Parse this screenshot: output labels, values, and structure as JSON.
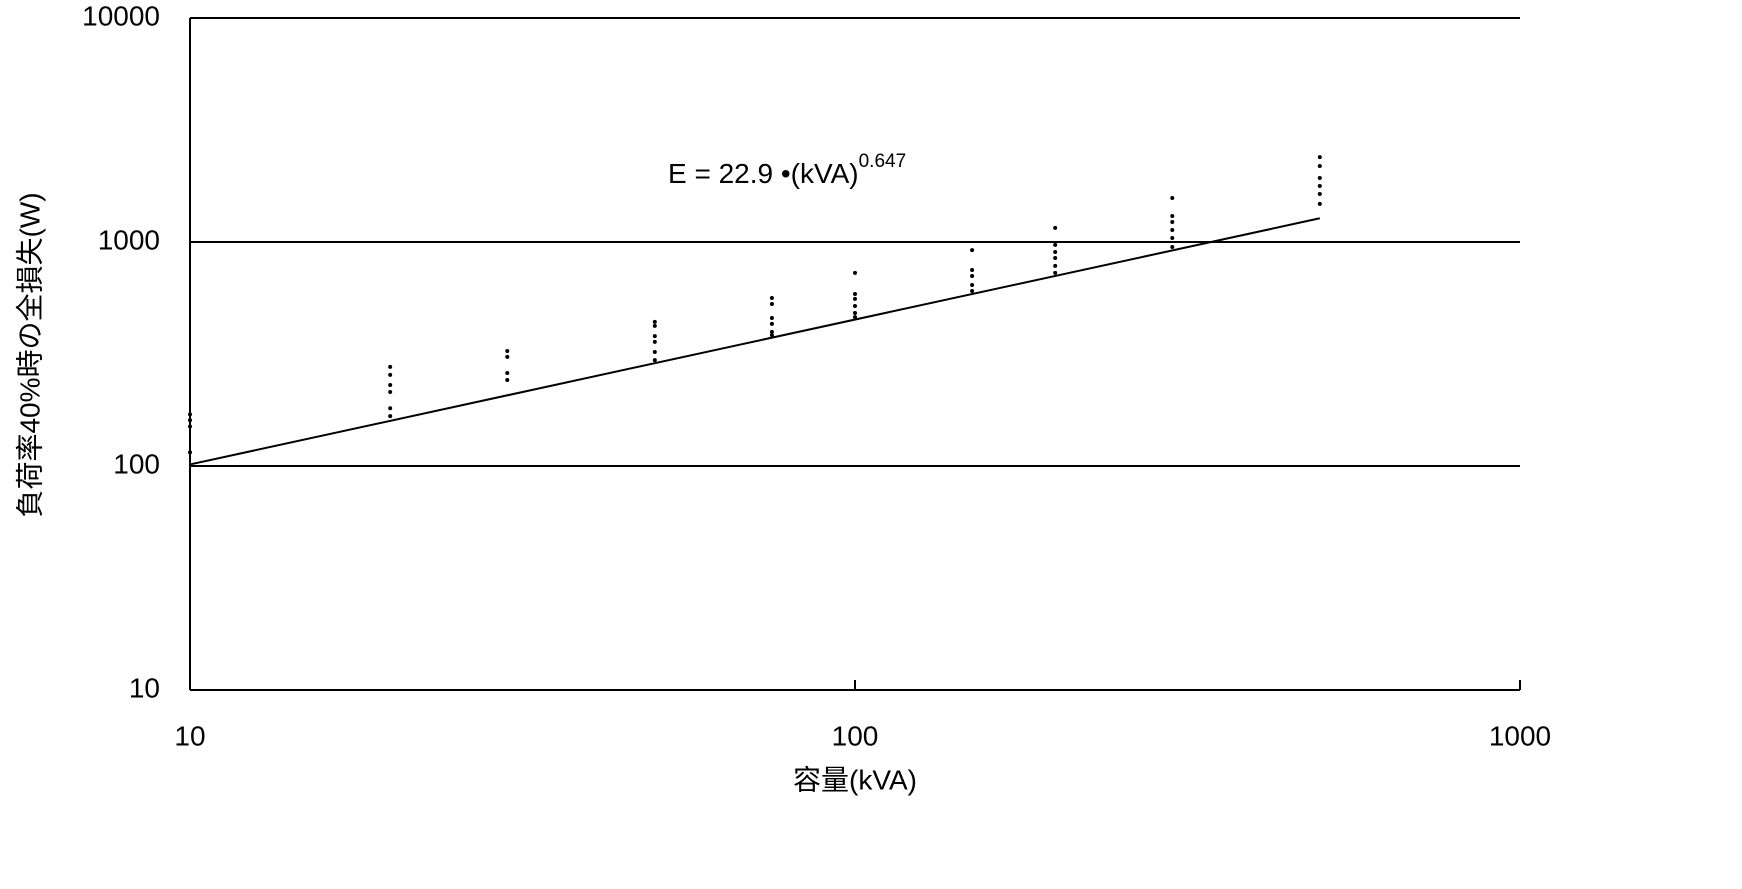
{
  "chart_data": {
    "type": "scatter",
    "xscale": "log",
    "yscale": "log",
    "xlabel": "容量(kVA)",
    "ylabel": "負荷率40%時の全損失(W)",
    "xlim": [
      10,
      1000
    ],
    "ylim": [
      10,
      10000
    ],
    "xticks": [
      10,
      100,
      1000
    ],
    "yticks": [
      10,
      100,
      1000,
      10000
    ],
    "grid": "y",
    "annotation": {
      "text": "E = 22.9 •(kVA)",
      "superscript": "0.647"
    },
    "series": [
      {
        "mode": "markers",
        "color": "#000000",
        "x": [
          10,
          10,
          10,
          10,
          20,
          20,
          20,
          20,
          20,
          20,
          30,
          30,
          30,
          30,
          50,
          50,
          50,
          50,
          50,
          50,
          75,
          75,
          75,
          75,
          75,
          75,
          100,
          100,
          100,
          100,
          100,
          100,
          150,
          150,
          150,
          150,
          150,
          200,
          200,
          200,
          200,
          200,
          200,
          300,
          300,
          300,
          300,
          300,
          300,
          500,
          500,
          500,
          500,
          500,
          500
        ],
        "values": [
          170,
          160,
          150,
          115,
          277,
          255,
          230,
          214,
          181,
          167,
          326,
          307,
          260,
          242,
          440,
          422,
          380,
          358,
          323,
          297,
          562,
          529,
          458,
          431,
          397,
          384,
          728,
          586,
          557,
          518,
          482,
          462,
          920,
          750,
          705,
          643,
          604,
          1156,
          971,
          902,
          848,
          782,
          728,
          1571,
          1306,
          1228,
          1132,
          1042,
          950,
          2393,
          2183,
          1930,
          1778,
          1638,
          1479
        ]
      },
      {
        "mode": "line",
        "color": "#000000",
        "x": [
          10,
          500
        ],
        "values": [
          101.6,
          1276
        ]
      }
    ]
  }
}
